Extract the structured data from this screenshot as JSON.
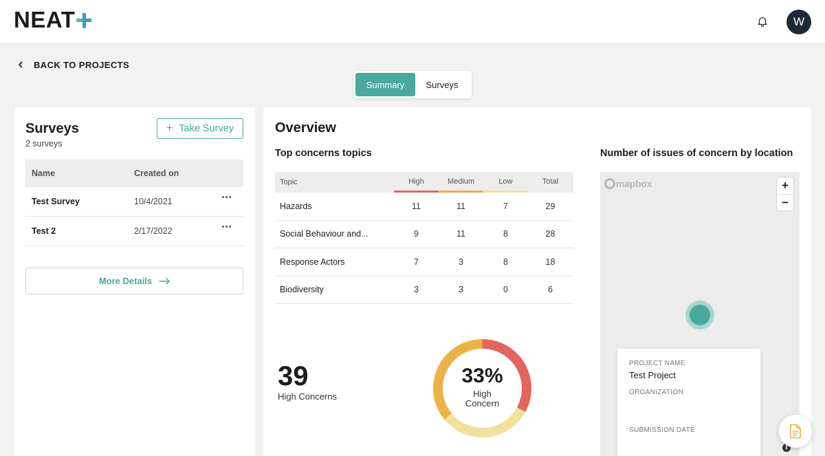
{
  "header": {
    "logo_text": "NEAT",
    "avatar_initial": "W",
    "accent_color": "#4aa89c"
  },
  "nav": {
    "back_label": "BACK TO PROJECTS",
    "tabs": [
      {
        "label": "Summary",
        "active": true
      },
      {
        "label": "Surveys",
        "active": false
      }
    ]
  },
  "surveys_panel": {
    "title": "Surveys",
    "count_text": "2 surveys",
    "take_survey_label": "Take Survey",
    "columns": [
      "Name",
      "Created on"
    ],
    "rows": [
      {
        "name": "Test Survey",
        "created": "10/4/2021"
      },
      {
        "name": "Test 2",
        "created": "2/17/2022"
      }
    ],
    "more_details_label": "More Details"
  },
  "overview": {
    "title": "Overview",
    "topics_title": "Top concerns topics",
    "map_title": "Number of issues of concern by location",
    "columns": [
      "Topic",
      "High",
      "Medium",
      "Low",
      "Total"
    ],
    "column_colors": {
      "High": "#e4655e",
      "Medium": "#ebb347",
      "Low": "#f1e19e"
    },
    "rows": [
      {
        "topic": "Hazards",
        "high": "11",
        "medium": "11",
        "low": "7",
        "total": "29"
      },
      {
        "topic": "Social Behaviour and...",
        "high": "9",
        "medium": "11",
        "low": "8",
        "total": "28"
      },
      {
        "topic": "Response Actors",
        "high": "7",
        "medium": "3",
        "low": "8",
        "total": "18"
      },
      {
        "topic": "Biodiversity",
        "high": "3",
        "medium": "3",
        "low": "0",
        "total": "6"
      }
    ],
    "high_concerns_count": "39",
    "high_concerns_label": "High Concerns",
    "donut_percent": "33%",
    "donut_label_line1": "High",
    "donut_label_line2": "Concern",
    "donut_segments": [
      {
        "name": "High",
        "fraction": 0.33,
        "color": "#e4655e"
      },
      {
        "name": "Low",
        "fraction": 0.31,
        "color": "#f1e19e"
      },
      {
        "name": "Medium",
        "fraction": 0.36,
        "color": "#ebb347"
      }
    ]
  },
  "map": {
    "attribution": "mapbox",
    "zoom_in": "+",
    "zoom_out": "−",
    "info": "i",
    "popup": {
      "project_name_label": "PROJECT NAME",
      "project_name": "Test Project",
      "organization_label": "ORGANIZATION",
      "submission_date_label": "SUBMISSION DATE"
    }
  }
}
